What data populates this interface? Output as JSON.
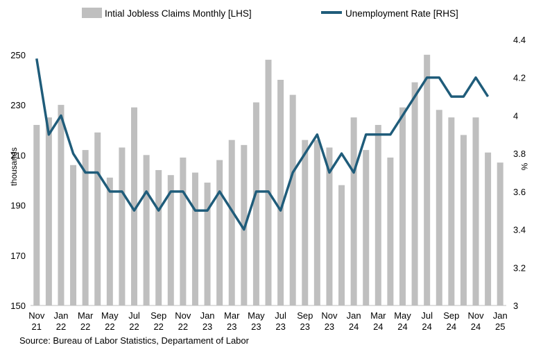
{
  "chart_data": {
    "type": "bar",
    "categories": [
      "Nov 21",
      "Dec 21",
      "Jan 22",
      "Feb 22",
      "Mar 22",
      "Apr 22",
      "May 22",
      "Jun 22",
      "Jul 22",
      "Aug 22",
      "Sep 22",
      "Oct 22",
      "Nov 22",
      "Dec 22",
      "Jan 23",
      "Feb 23",
      "Mar 23",
      "Apr 23",
      "May 23",
      "Jun 23",
      "Jul 23",
      "Aug 23",
      "Sep 23",
      "Oct 23",
      "Nov 23",
      "Dec 23",
      "Jan 24",
      "Feb 24",
      "Mar 24",
      "Apr 24",
      "May 24",
      "Jun 24",
      "Jul 24",
      "Aug 24",
      "Sep 24",
      "Oct 24",
      "Nov 24",
      "Dec 24",
      "Jan 25"
    ],
    "x_tick_labels": [
      {
        "index": 0,
        "line1": "Nov",
        "line2": "21"
      },
      {
        "index": 2,
        "line1": "Jan",
        "line2": "22"
      },
      {
        "index": 4,
        "line1": "Mar",
        "line2": "22"
      },
      {
        "index": 6,
        "line1": "May",
        "line2": "22"
      },
      {
        "index": 8,
        "line1": "Jul",
        "line2": "22"
      },
      {
        "index": 10,
        "line1": "Sep",
        "line2": "22"
      },
      {
        "index": 12,
        "line1": "Nov",
        "line2": "22"
      },
      {
        "index": 14,
        "line1": "Jan",
        "line2": "23"
      },
      {
        "index": 16,
        "line1": "Mar",
        "line2": "23"
      },
      {
        "index": 18,
        "line1": "May",
        "line2": "23"
      },
      {
        "index": 20,
        "line1": "Jul",
        "line2": "23"
      },
      {
        "index": 22,
        "line1": "Sep",
        "line2": "23"
      },
      {
        "index": 24,
        "line1": "Nov",
        "line2": "23"
      },
      {
        "index": 26,
        "line1": "Jan",
        "line2": "24"
      },
      {
        "index": 28,
        "line1": "Mar",
        "line2": "24"
      },
      {
        "index": 30,
        "line1": "May",
        "line2": "24"
      },
      {
        "index": 32,
        "line1": "Jul",
        "line2": "24"
      },
      {
        "index": 34,
        "line1": "Sep",
        "line2": "24"
      },
      {
        "index": 36,
        "line1": "Nov",
        "line2": "24"
      },
      {
        "index": 38,
        "line1": "Jan",
        "line2": "25"
      }
    ],
    "series": [
      {
        "name": "Intial Jobless Claims Monthly [LHS]",
        "axis": "left",
        "kind": "bar",
        "color": "#bfbfbf",
        "values": [
          222,
          225,
          230,
          206,
          212,
          219,
          201,
          213,
          229,
          210,
          204,
          202,
          209,
          203,
          199,
          208,
          216,
          214,
          231,
          248,
          240,
          234,
          216,
          216,
          213,
          198,
          225,
          212,
          222,
          209,
          229,
          239,
          250,
          228,
          225,
          218,
          225,
          211,
          207
        ]
      },
      {
        "name": "Unemployment Rate [RHS]",
        "axis": "right",
        "kind": "line",
        "color": "#1f5c7a",
        "values": [
          4.3,
          3.9,
          4.0,
          3.8,
          3.7,
          3.7,
          3.6,
          3.6,
          3.5,
          3.6,
          3.5,
          3.6,
          3.6,
          3.5,
          3.5,
          3.6,
          3.5,
          3.4,
          3.6,
          3.6,
          3.5,
          3.7,
          3.8,
          3.9,
          3.7,
          3.8,
          3.7,
          3.9,
          3.9,
          3.9,
          4.0,
          4.1,
          4.2,
          4.2,
          4.1,
          4.1,
          4.2,
          4.1,
          null
        ]
      }
    ],
    "y_left": {
      "label": "thousands",
      "min": 150,
      "max": 253,
      "ticks": [
        150,
        170,
        190,
        210,
        230,
        250
      ]
    },
    "y_right": {
      "label": "%",
      "min": 3.0,
      "max": 4.4,
      "ticks": [
        "3",
        "3.2",
        "3.4",
        "3.6",
        "3.8",
        "4",
        "4.2",
        "4.4"
      ]
    },
    "grid": false,
    "legend_position": "top",
    "source": "Source: Bureau of Labor Statistics, Departament of Labor"
  }
}
